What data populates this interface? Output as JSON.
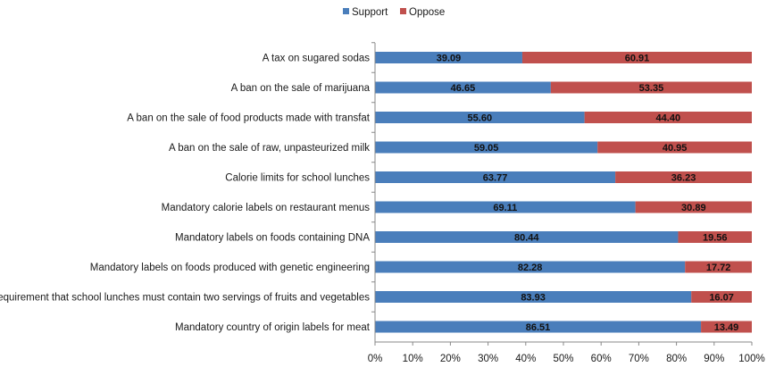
{
  "chart_data": {
    "type": "bar",
    "orientation": "horizontal",
    "stacked": true,
    "categories": [
      "A tax on sugared sodas",
      "A ban on the sale of marijuana",
      "A ban on the sale of food products made with transfat",
      "A ban on the sale of raw, unpasteurized milk",
      "Calorie limits for school lunches",
      "Mandatory calorie labels on restaurant menus",
      "Mandatory labels on foods containing DNA",
      "Mandatory labels on foods produced with genetic engineering",
      "A requirement that school lunches must contain two servings of fruits and vegetables",
      "Mandatory country of origin labels for meat"
    ],
    "series": [
      {
        "name": "Support",
        "color": "#4a7ebb",
        "values": [
          39.09,
          46.65,
          55.6,
          59.05,
          63.77,
          69.11,
          80.44,
          82.28,
          83.93,
          86.51
        ],
        "labels": [
          "39.09",
          "46.65",
          "55.60",
          "59.05",
          "63.77",
          "69.11",
          "80.44",
          "82.28",
          "83.93",
          "86.51"
        ]
      },
      {
        "name": "Oppose",
        "color": "#c0504d",
        "values": [
          60.91,
          53.35,
          44.4,
          40.95,
          36.23,
          30.89,
          19.56,
          17.72,
          16.07,
          13.49
        ],
        "labels": [
          "60.91",
          "53.35",
          "44.40",
          "40.95",
          "36.23",
          "30.89",
          "19.56",
          "17.72",
          "16.07",
          "13.49"
        ]
      }
    ],
    "xlim": [
      0,
      100
    ],
    "xticks": [
      0,
      10,
      20,
      30,
      40,
      50,
      60,
      70,
      80,
      90,
      100
    ],
    "xtick_labels": [
      "0%",
      "10%",
      "20%",
      "30%",
      "40%",
      "50%",
      "60%",
      "70%",
      "80%",
      "90%",
      "100%"
    ],
    "legend_position": "top-center",
    "grid": false,
    "title": "",
    "xlabel": "",
    "ylabel": ""
  }
}
